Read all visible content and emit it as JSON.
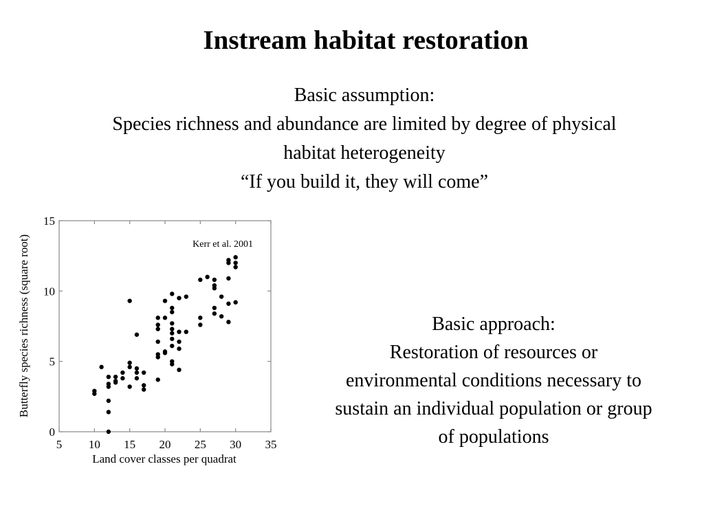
{
  "slide": {
    "title": "Instream habitat restoration",
    "assumption": {
      "heading": "Basic assumption:",
      "line1": "Species richness and abundance are limited by degree of physical",
      "line2": "habitat heterogeneity",
      "quote": "“If you build it, they will come”"
    },
    "approach": {
      "heading": "Basic approach:",
      "line1": "Restoration of resources or",
      "line2": "environmental conditions necessary to",
      "line3": "sustain an individual population or group",
      "line4": "of populations"
    }
  },
  "chart_data": {
    "type": "scatter",
    "title": "",
    "annotation": "Kerr et al. 2001",
    "xlabel": "Land cover classes per quadrat",
    "ylabel": "Butterfly species richness (square root)",
    "xlim": [
      5,
      35
    ],
    "ylim": [
      0,
      15
    ],
    "xticks": [
      5,
      10,
      15,
      20,
      25,
      30,
      35
    ],
    "yticks": [
      0,
      5,
      10,
      15
    ],
    "grid": false,
    "legend": "none",
    "marker_color": "#000000",
    "points": [
      [
        10,
        2.9
      ],
      [
        10,
        2.7
      ],
      [
        11,
        4.6
      ],
      [
        12,
        0.0
      ],
      [
        12,
        1.4
      ],
      [
        12,
        2.2
      ],
      [
        12,
        3.2
      ],
      [
        12,
        3.4
      ],
      [
        12,
        3.9
      ],
      [
        13,
        3.6
      ],
      [
        13,
        3.9
      ],
      [
        13,
        3.5
      ],
      [
        14,
        3.8
      ],
      [
        14,
        4.2
      ],
      [
        15,
        3.2
      ],
      [
        15,
        4.6
      ],
      [
        15,
        4.9
      ],
      [
        15,
        9.3
      ],
      [
        16,
        3.8
      ],
      [
        16,
        4.2
      ],
      [
        16,
        4.5
      ],
      [
        16,
        6.9
      ],
      [
        17,
        3.0
      ],
      [
        17,
        3.3
      ],
      [
        17,
        4.2
      ],
      [
        19,
        3.7
      ],
      [
        19,
        5.3
      ],
      [
        19,
        5.5
      ],
      [
        19,
        6.4
      ],
      [
        19,
        7.3
      ],
      [
        19,
        7.6
      ],
      [
        19,
        8.1
      ],
      [
        20,
        5.6
      ],
      [
        20,
        5.7
      ],
      [
        20,
        8.1
      ],
      [
        20,
        9.3
      ],
      [
        21,
        4.8
      ],
      [
        21,
        5.0
      ],
      [
        21,
        6.1
      ],
      [
        21,
        6.6
      ],
      [
        21,
        7.0
      ],
      [
        21,
        7.3
      ],
      [
        21,
        7.7
      ],
      [
        21,
        8.5
      ],
      [
        21,
        8.8
      ],
      [
        21,
        9.8
      ],
      [
        22,
        4.4
      ],
      [
        22,
        5.9
      ],
      [
        22,
        6.4
      ],
      [
        22,
        7.1
      ],
      [
        22,
        9.5
      ],
      [
        23,
        7.1
      ],
      [
        23,
        9.6
      ],
      [
        25,
        7.6
      ],
      [
        25,
        8.1
      ],
      [
        25,
        10.8
      ],
      [
        26,
        11.0
      ],
      [
        27,
        8.4
      ],
      [
        27,
        8.8
      ],
      [
        27,
        10.2
      ],
      [
        27,
        10.4
      ],
      [
        27,
        10.8
      ],
      [
        28,
        8.2
      ],
      [
        28,
        9.6
      ],
      [
        29,
        7.8
      ],
      [
        29,
        9.1
      ],
      [
        29,
        10.9
      ],
      [
        29,
        12.0
      ],
      [
        29,
        12.2
      ],
      [
        30,
        9.2
      ],
      [
        30,
        11.7
      ],
      [
        30,
        12.0
      ],
      [
        30,
        12.4
      ]
    ]
  }
}
